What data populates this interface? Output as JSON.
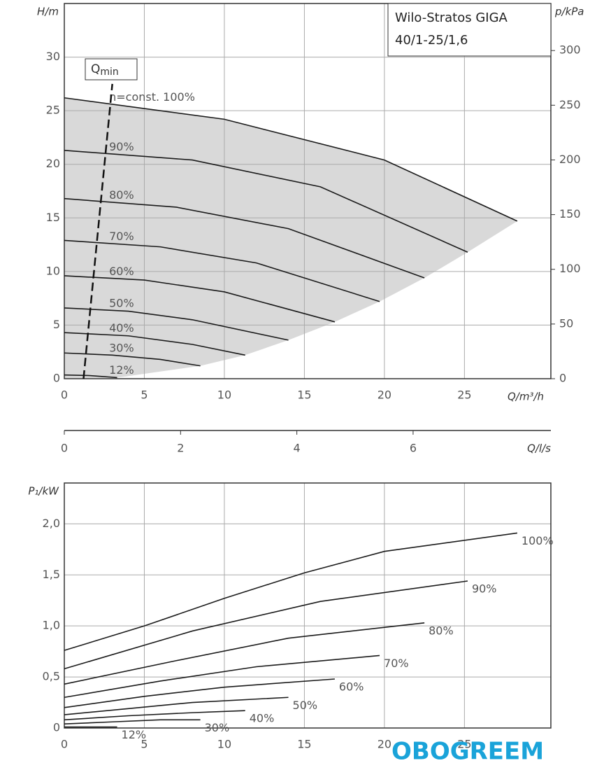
{
  "chart_data": [
    {
      "type": "line",
      "title": "Wilo-Stratos GIGA",
      "subtitle": "40/1-25/1,6",
      "ylabel": "H/m",
      "y2label": "p/kPa",
      "xlabel": "Q/m³/h",
      "x2label": "Q/l/s",
      "xlim": [
        0,
        30.4
      ],
      "xticks": [
        0,
        5,
        10,
        15,
        20,
        25
      ],
      "ylim": [
        0,
        35
      ],
      "yticks": [
        0,
        5,
        10,
        15,
        20,
        25,
        30
      ],
      "y2lim": [
        0,
        343
      ],
      "y2ticks": [
        0,
        50,
        100,
        150,
        200,
        250,
        300
      ],
      "x2lim": [
        0,
        8.37
      ],
      "x2ticks": [
        0,
        2,
        4,
        6
      ],
      "grid": true,
      "fill_color": "#d9d9d9",
      "qmin": {
        "label": "Q",
        "sub": "min",
        "x": [
          1.2,
          3.0
        ],
        "values": [
          0,
          27.5
        ]
      },
      "series": [
        {
          "name": "n=const. 100%",
          "color": "#111111",
          "x": [
            0,
            10,
            20,
            28.3
          ],
          "values": [
            26.2,
            24.2,
            20.4,
            14.7
          ]
        },
        {
          "name": "90%",
          "color": "#111111",
          "x": [
            0,
            8,
            16,
            25.2
          ],
          "values": [
            21.3,
            20.4,
            17.9,
            11.8
          ]
        },
        {
          "name": "80%",
          "color": "#111111",
          "x": [
            0,
            7,
            14,
            22.5
          ],
          "values": [
            16.8,
            16.0,
            14.0,
            9.4
          ]
        },
        {
          "name": "70%",
          "color": "#111111",
          "x": [
            0,
            6,
            12,
            19.7
          ],
          "values": [
            12.9,
            12.3,
            10.8,
            7.2
          ]
        },
        {
          "name": "60%",
          "color": "#111111",
          "x": [
            0,
            5,
            10,
            16.9
          ],
          "values": [
            9.6,
            9.2,
            8.1,
            5.3
          ]
        },
        {
          "name": "50%",
          "color": "#111111",
          "x": [
            0,
            4,
            8,
            14
          ],
          "values": [
            6.6,
            6.3,
            5.5,
            3.6
          ]
        },
        {
          "name": "40%",
          "color": "#111111",
          "x": [
            0,
            4,
            8,
            11.3
          ],
          "values": [
            4.3,
            4.0,
            3.2,
            2.2
          ]
        },
        {
          "name": "30%",
          "color": "#111111",
          "x": [
            0,
            3,
            6,
            8.5
          ],
          "values": [
            2.4,
            2.2,
            1.8,
            1.2
          ]
        },
        {
          "name": "12%",
          "color": "#111111",
          "x": [
            0,
            1.5,
            3.3
          ],
          "values": [
            0.35,
            0.3,
            0.1
          ]
        }
      ]
    },
    {
      "type": "line",
      "ylabel": "P₁/kW",
      "xlim": [
        0,
        30.4
      ],
      "xticks": [
        0,
        5,
        10,
        15,
        20,
        25
      ],
      "ylim": [
        0,
        2.4
      ],
      "yticks": [
        0,
        {
          "value": 0.5,
          "label": "0,5"
        },
        {
          "value": 1.0,
          "label": "1,0"
        },
        {
          "value": 1.5,
          "label": "1,5"
        },
        {
          "value": 2.0,
          "label": "2,0"
        }
      ],
      "grid": true,
      "series": [
        {
          "name": "100%",
          "color": "#111111",
          "x": [
            0,
            5,
            10,
            15,
            20,
            28.3
          ],
          "values": [
            0.76,
            1.0,
            1.27,
            1.52,
            1.73,
            1.91
          ]
        },
        {
          "name": "90%",
          "color": "#111111",
          "x": [
            0,
            8,
            16,
            25.2
          ],
          "values": [
            0.58,
            0.95,
            1.24,
            1.44
          ]
        },
        {
          "name": "80%",
          "color": "#111111",
          "x": [
            0,
            7,
            14,
            22.5
          ],
          "values": [
            0.43,
            0.66,
            0.88,
            1.03
          ]
        },
        {
          "name": "70%",
          "color": "#111111",
          "x": [
            0,
            6,
            12,
            19.7
          ],
          "values": [
            0.3,
            0.46,
            0.6,
            0.71
          ]
        },
        {
          "name": "60%",
          "color": "#111111",
          "x": [
            0,
            5,
            10,
            16.9
          ],
          "values": [
            0.2,
            0.31,
            0.4,
            0.48
          ]
        },
        {
          "name": "50%",
          "color": "#111111",
          "x": [
            0,
            4,
            8,
            14
          ],
          "values": [
            0.13,
            0.19,
            0.25,
            0.3
          ]
        },
        {
          "name": "40%",
          "color": "#111111",
          "x": [
            0,
            4,
            8,
            11.3
          ],
          "values": [
            0.08,
            0.12,
            0.15,
            0.17
          ]
        },
        {
          "name": "30%",
          "color": "#111111",
          "x": [
            0,
            3,
            6,
            8.5
          ],
          "values": [
            0.04,
            0.06,
            0.08,
            0.08
          ]
        },
        {
          "name": "12%",
          "color": "#111111",
          "x": [
            0,
            3.3
          ],
          "values": [
            0.01,
            0.01
          ]
        }
      ]
    }
  ],
  "watermark": "OBOGREEM"
}
